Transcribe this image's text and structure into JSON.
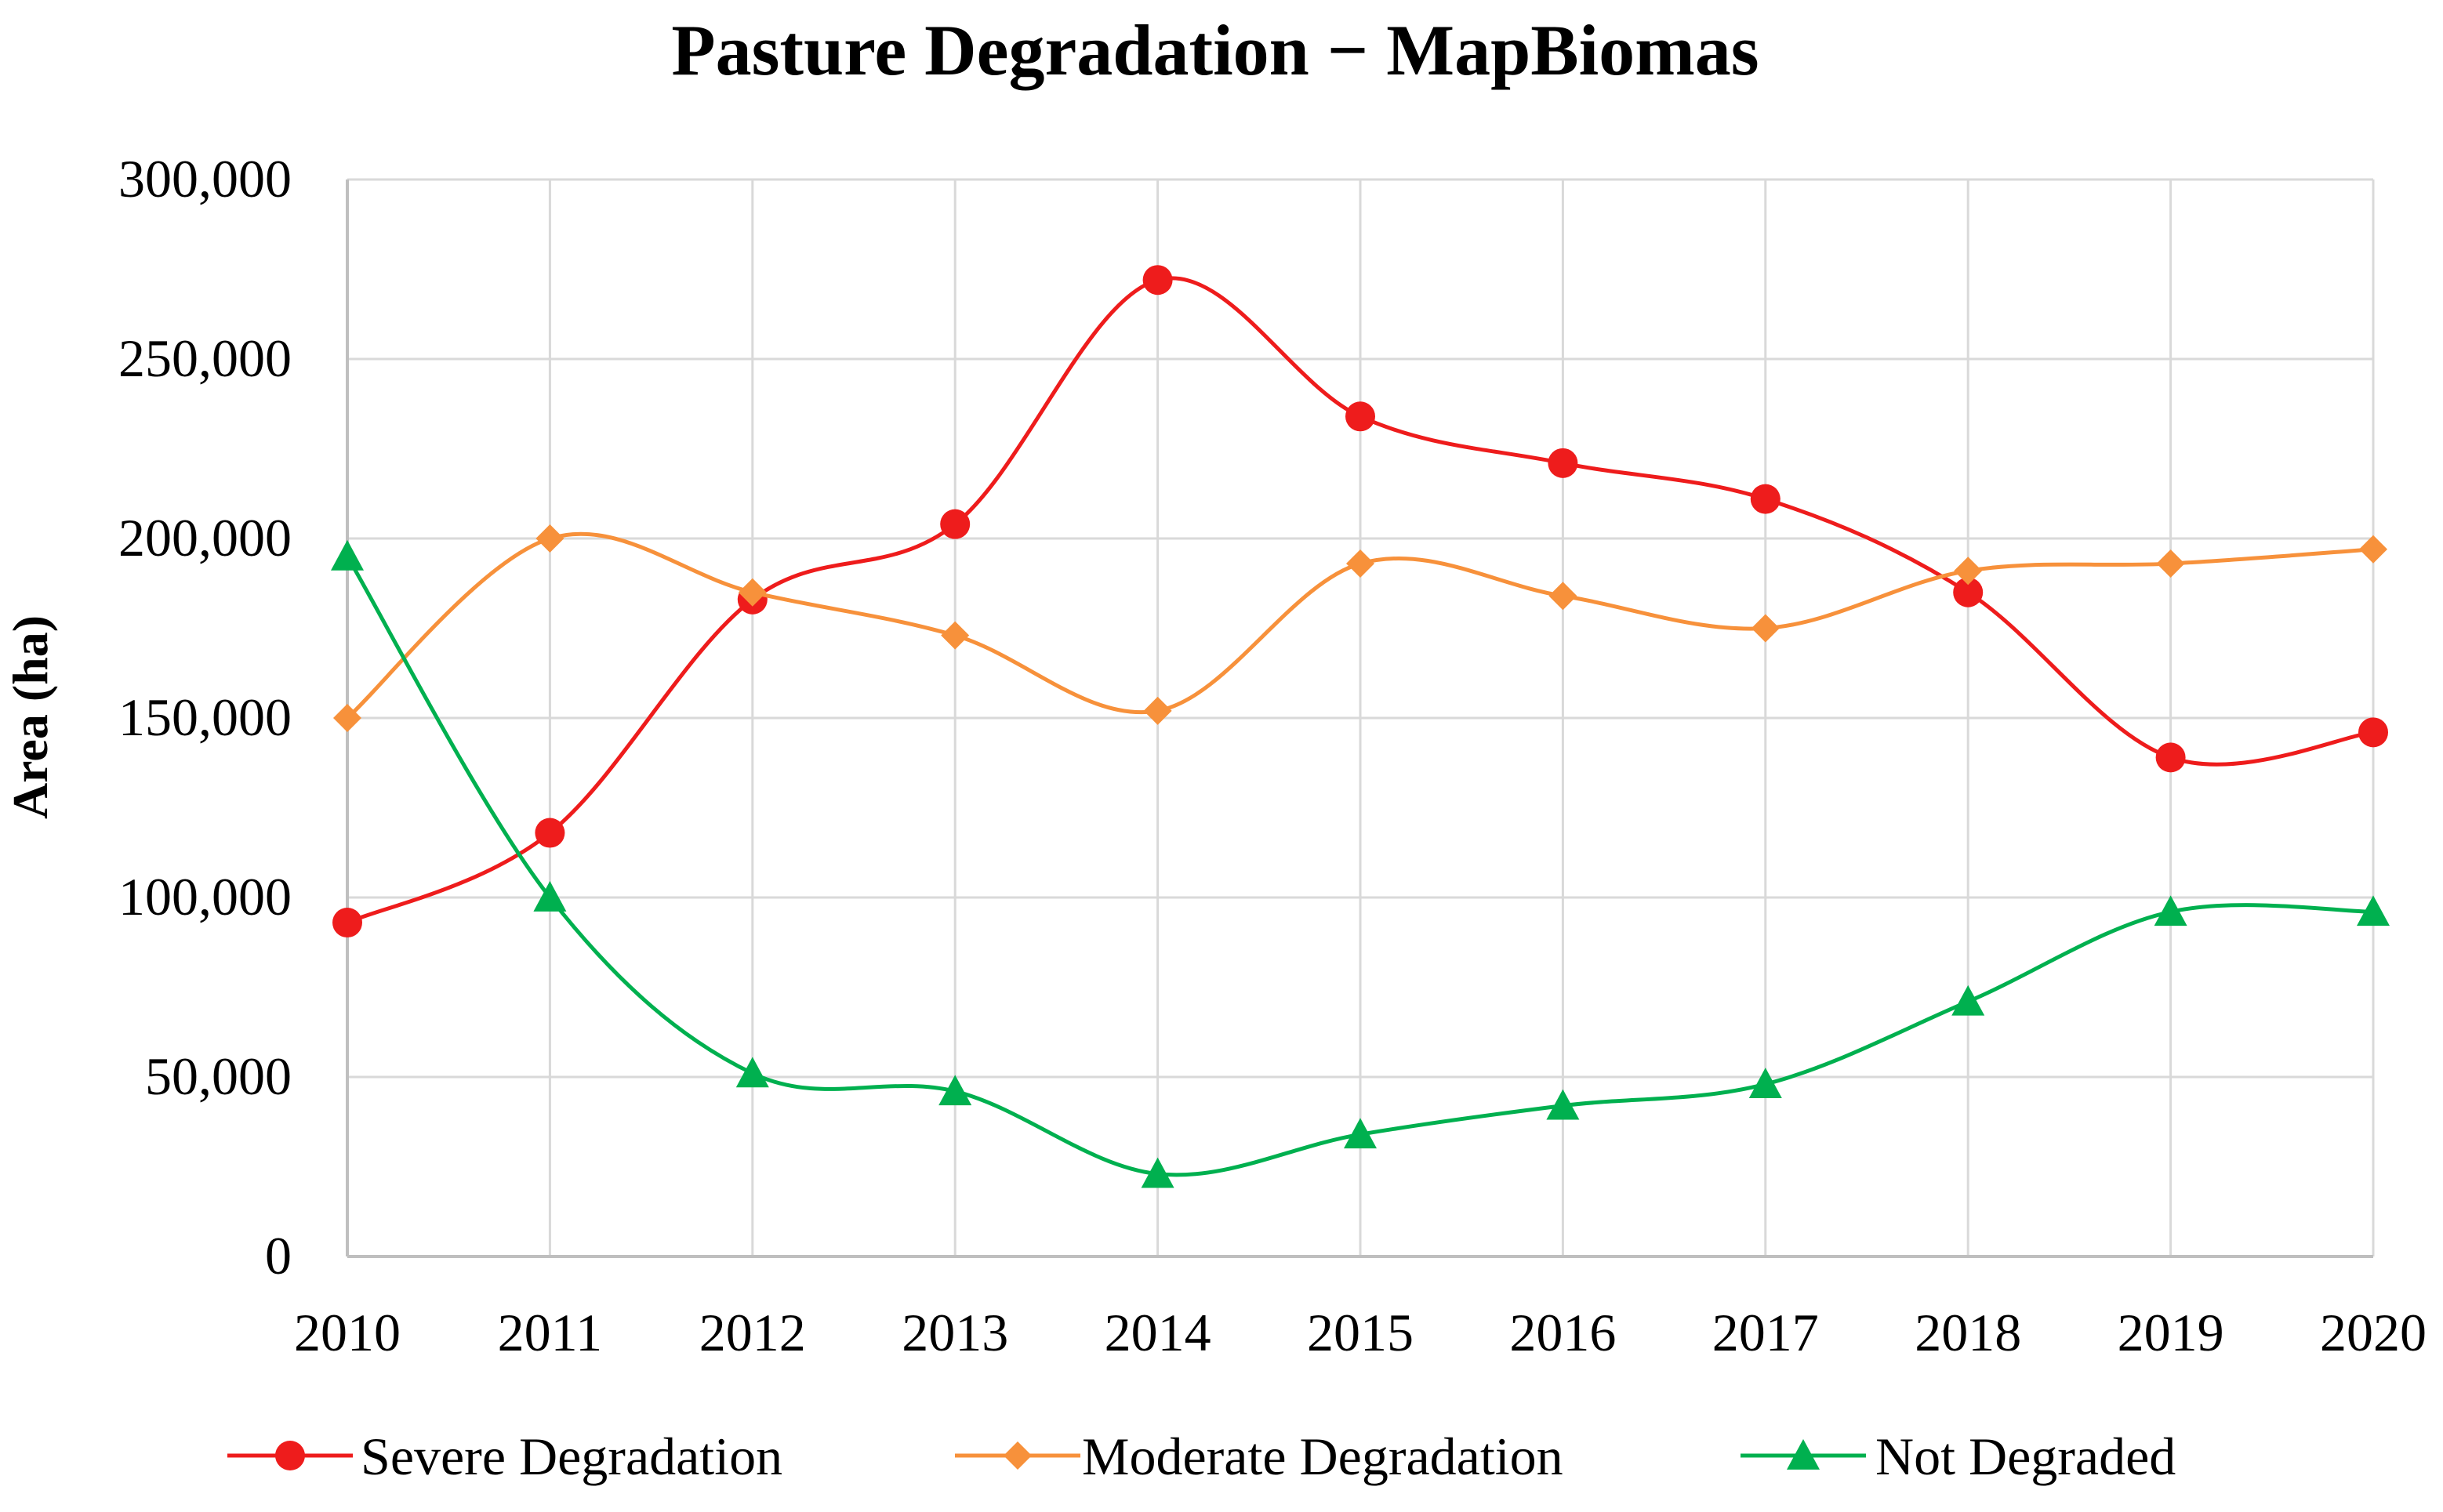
{
  "chart_data": {
    "type": "line",
    "title": "Pasture Degradation − MapBiomas",
    "xlabel": "",
    "ylabel": "Area (ha)",
    "ylim": [
      0,
      300000
    ],
    "yticks": [
      0,
      50000,
      100000,
      150000,
      200000,
      250000,
      300000
    ],
    "ytick_labels": [
      "0",
      "50,000",
      "100,000",
      "150,000",
      "200,000",
      "250,000",
      "300,000"
    ],
    "categories": [
      "2010",
      "2011",
      "2012",
      "2013",
      "2014",
      "2015",
      "2016",
      "2017",
      "2018",
      "2019",
      "2020"
    ],
    "grid": true,
    "legend_position": "bottom",
    "series": [
      {
        "name": "Severe Degradation",
        "color": "#ee1c1c",
        "marker": "circle",
        "values": [
          93000,
          118000,
          183000,
          204000,
          272000,
          234000,
          221000,
          211000,
          185000,
          139000,
          146000
        ]
      },
      {
        "name": "Moderate Degradation",
        "color": "#f7913b",
        "marker": "diamond",
        "values": [
          150000,
          200000,
          185000,
          173000,
          152000,
          193000,
          184000,
          175000,
          191000,
          193000,
          197000
        ]
      },
      {
        "name": "Not Degraded",
        "color": "#00b04f",
        "marker": "triangle",
        "values": [
          195000,
          100000,
          51000,
          46000,
          23000,
          34000,
          42000,
          48000,
          71000,
          96000,
          96000
        ]
      }
    ]
  }
}
